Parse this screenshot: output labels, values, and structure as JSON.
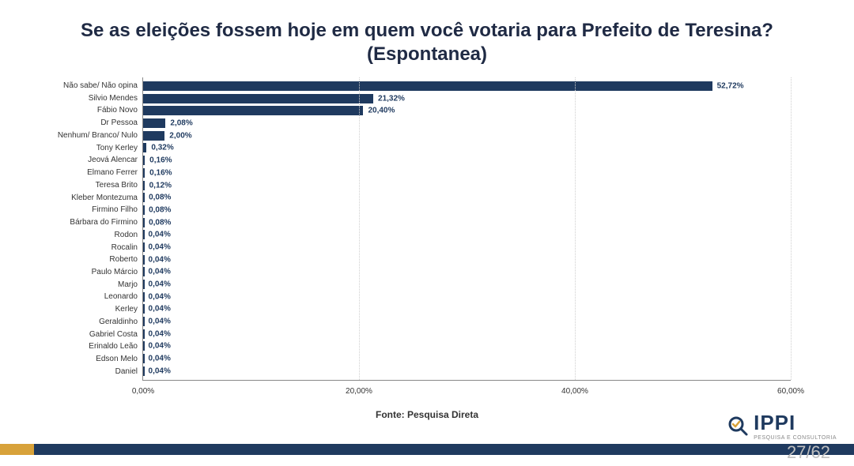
{
  "chart": {
    "type": "bar-horizontal",
    "title": "Se as eleições fossem hoje em quem você votaria para Prefeito de Teresina? (Espontanea)",
    "title_fontsize": 24,
    "title_color": "#1f2a44",
    "bar_color": "#1f3a5f",
    "value_color": "#1f3a5f",
    "value_fontsize": 10,
    "label_fontsize": 10,
    "label_color": "#333333",
    "grid_color": "#cfcfcf",
    "axis_color": "#888888",
    "background_color": "#ffffff",
    "page_background": "#e6e6e6",
    "xlim": [
      0,
      60
    ],
    "xtick_step": 20,
    "xtick_labels": [
      "0,00%",
      "20,00%",
      "40,00%",
      "60,00%"
    ],
    "categories": [
      "Não sabe/ Não opina",
      "Silvio Mendes",
      "Fábio Novo",
      "Dr Pessoa",
      "Nenhum/ Branco/ Nulo",
      "Tony Kerley",
      "Jeová Alencar",
      "Elmano Ferrer",
      "Teresa Brito",
      "Kleber Montezuma",
      "Firmino Filho",
      "Bárbara do Firmino",
      "Rodon",
      "Rocalin",
      "Roberto",
      "Paulo Márcio",
      "Marjo",
      "Leonardo",
      "Kerley",
      "Geraldinho",
      "Gabriel Costa",
      "Erinaldo Leão",
      "Edson Melo",
      "Daniel"
    ],
    "values": [
      52.72,
      21.32,
      20.4,
      2.08,
      2.0,
      0.32,
      0.16,
      0.16,
      0.12,
      0.08,
      0.08,
      0.08,
      0.04,
      0.04,
      0.04,
      0.04,
      0.04,
      0.04,
      0.04,
      0.04,
      0.04,
      0.04,
      0.04,
      0.04
    ],
    "value_labels": [
      "52,72%",
      "21,32%",
      "20,40%",
      "2,08%",
      "2,00%",
      "0,32%",
      "0,16%",
      "0,16%",
      "0,12%",
      "0,08%",
      "0,08%",
      "0,08%",
      "0,04%",
      "0,04%",
      "0,04%",
      "0,04%",
      "0,04%",
      "0,04%",
      "0,04%",
      "0,04%",
      "0,04%",
      "0,04%",
      "0,04%",
      "0,04%"
    ]
  },
  "source_label": "Fonte: Pesquisa Direta",
  "brand": {
    "name": "IPPI",
    "subtitle": "PESQUISA E CONSULTORIA"
  },
  "page_indicator": "27/62",
  "footer_stripe_colors": [
    "#d8a23a",
    "#1f3a5f"
  ],
  "footer_stripe_split": 0.04
}
